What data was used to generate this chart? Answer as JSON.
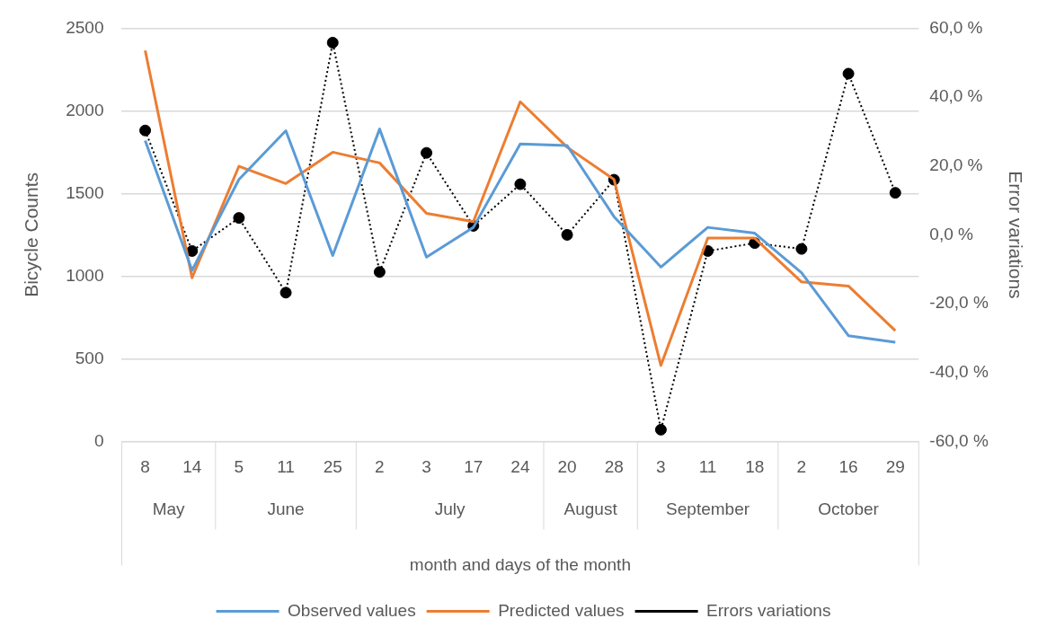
{
  "chart_data": {
    "type": "line",
    "xlabel": "month and days of the month",
    "ylabel": "Bicycle Counts",
    "y2label": "Error variations",
    "categories": [
      "8",
      "14",
      "5",
      "11",
      "25",
      "2",
      "3",
      "17",
      "24",
      "20",
      "28",
      "3",
      "11",
      "18",
      "2",
      "16",
      "29"
    ],
    "series": [
      {
        "name": "Observed values",
        "color": "#5b9bd5",
        "marker": "none",
        "line_style": "solid",
        "values": [
          1820,
          1035,
          1585,
          1880,
          1125,
          1890,
          1115,
          1295,
          1800,
          1790,
          1360,
          1055,
          1295,
          1260,
          1020,
          640,
          600
        ]
      },
      {
        "name": "Predicted values",
        "color": "#ed7d31",
        "marker": "none",
        "line_style": "solid",
        "values": [
          2365,
          990,
          1665,
          1560,
          1750,
          1685,
          1380,
          1330,
          2055,
          1780,
          1585,
          460,
          1230,
          1230,
          965,
          940,
          670
        ]
      },
      {
        "name": "Errors variations",
        "color": "#000000",
        "marker": "circle",
        "line_style": "dotted",
        "axis": "y2",
        "values": [
          30.3,
          -4.7,
          4.9,
          -16.8,
          55.8,
          -10.8,
          23.8,
          2.6,
          14.7,
          0.0,
          16.0,
          -56.6,
          -4.7,
          -2.4,
          -4.1,
          46.8,
          12.2
        ]
      }
    ],
    "annotations": [
      "May",
      "June",
      "July",
      "August",
      "September",
      "October"
    ],
    "ylim": [
      0,
      2500
    ],
    "yticks": [
      0,
      500,
      1000,
      1500,
      2000,
      2500
    ],
    "y2lim": [
      -60,
      60
    ],
    "y2ticks": [
      {
        "value": -60,
        "label": "-60,0 %"
      },
      {
        "value": -40,
        "label": "-40,0 %"
      },
      {
        "value": -20,
        "label": "-20,0 %"
      },
      {
        "value": 0,
        "label": "0,0 %"
      },
      {
        "value": 20,
        "label": "20,0 %"
      },
      {
        "value": 40,
        "label": "40,0 %"
      },
      {
        "value": 60,
        "label": "60,0 %"
      }
    ],
    "grid": "y",
    "legend": "bottom"
  }
}
